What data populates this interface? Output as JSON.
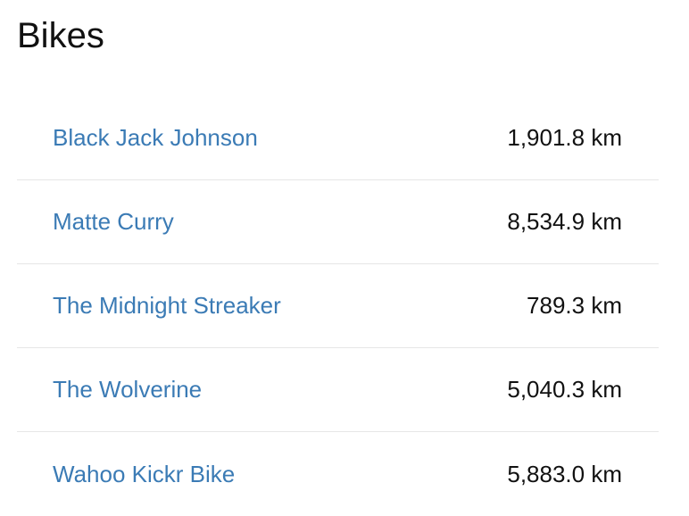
{
  "title": "Bikes",
  "bikes": [
    {
      "name": "Black Jack Johnson",
      "distance": "1,901.8 km"
    },
    {
      "name": "Matte Curry",
      "distance": "8,534.9 km"
    },
    {
      "name": "The Midnight Streaker",
      "distance": "789.3 km"
    },
    {
      "name": "The Wolverine",
      "distance": "5,040.3 km"
    },
    {
      "name": "Wahoo Kickr Bike",
      "distance": "5,883.0 km"
    }
  ]
}
